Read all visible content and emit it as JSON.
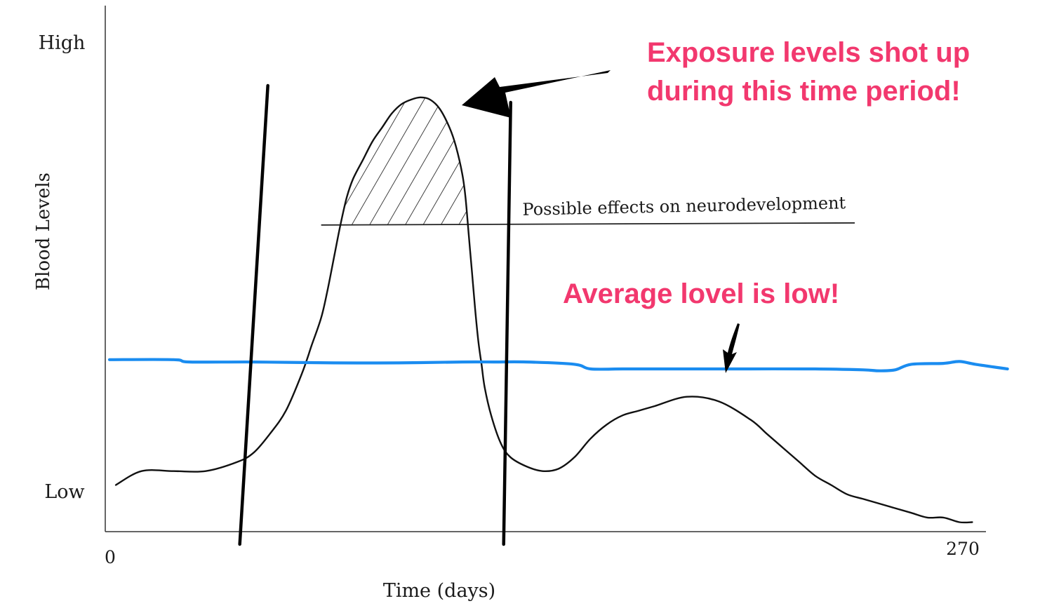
{
  "chart_data": {
    "type": "line",
    "title": "",
    "xlabel": "Time (days)",
    "ylabel": "Blood Levels",
    "xlim": [
      0,
      270
    ],
    "ylim_labels": [
      "Low",
      "High"
    ],
    "x_tick_labels": [
      "0",
      "270"
    ],
    "y_tick_labels": [
      "Low",
      "High"
    ],
    "grid": false,
    "series": [
      {
        "name": "",
        "color": "#111111",
        "x": [
          2,
          10,
          20,
          30,
          40,
          45,
          50,
          55,
          60,
          63,
          66,
          68,
          70,
          72,
          74,
          76,
          79,
          82,
          85,
          88,
          91,
          94,
          97,
          100,
          103,
          106,
          108,
          110,
          111,
          112,
          113,
          114,
          115,
          116,
          117,
          119,
          122,
          125,
          130,
          135,
          140,
          145,
          150,
          155,
          160,
          165,
          170,
          180,
          190,
          200,
          205,
          210,
          215,
          220,
          225,
          230,
          235,
          240,
          245,
          250,
          255,
          260,
          265,
          269
        ],
        "y": [
          0.04,
          0.07,
          0.07,
          0.07,
          0.09,
          0.11,
          0.15,
          0.2,
          0.28,
          0.34,
          0.4,
          0.46,
          0.53,
          0.6,
          0.66,
          0.7,
          0.74,
          0.78,
          0.81,
          0.84,
          0.86,
          0.87,
          0.875,
          0.87,
          0.85,
          0.81,
          0.77,
          0.71,
          0.66,
          0.58,
          0.5,
          0.42,
          0.35,
          0.3,
          0.25,
          0.19,
          0.13,
          0.1,
          0.08,
          0.07,
          0.075,
          0.1,
          0.14,
          0.17,
          0.19,
          0.2,
          0.21,
          0.23,
          0.22,
          0.18,
          0.15,
          0.12,
          0.09,
          0.06,
          0.04,
          0.02,
          0.01,
          0.0,
          -0.01,
          -0.02,
          -0.03,
          -0.03,
          -0.04,
          -0.04
        ]
      },
      {
        "name": "",
        "color": "#1a8cf0",
        "x": [
          0,
          20,
          25,
          45,
          70,
          90,
          110,
          120,
          130,
          145,
          150,
          160,
          170,
          180,
          200,
          220,
          235,
          240,
          245,
          250,
          260,
          265,
          270,
          280
        ],
        "y": [
          0.31,
          0.31,
          0.305,
          0.305,
          0.303,
          0.303,
          0.305,
          0.305,
          0.305,
          0.3,
          0.29,
          0.29,
          0.29,
          0.29,
          0.29,
          0.29,
          0.288,
          0.286,
          0.288,
          0.3,
          0.302,
          0.306,
          0.3,
          0.29
        ]
      }
    ],
    "threshold": {
      "label": "Possible effects on neurodevelopment",
      "value": 0.6,
      "shaded": "hatched area of the curve above the threshold"
    },
    "markers": [
      {
        "x": 45,
        "label": ""
      },
      {
        "x": 124,
        "label": ""
      }
    ]
  },
  "annotations": {
    "exposure_line1": "Exposure levels shot up",
    "exposure_line2": "during this time period!",
    "average": "Average lovel is low!"
  },
  "colors": {
    "callout": "#f2386e",
    "average_line": "#1a8cf0",
    "curve": "#111111",
    "axis": "#333333"
  }
}
